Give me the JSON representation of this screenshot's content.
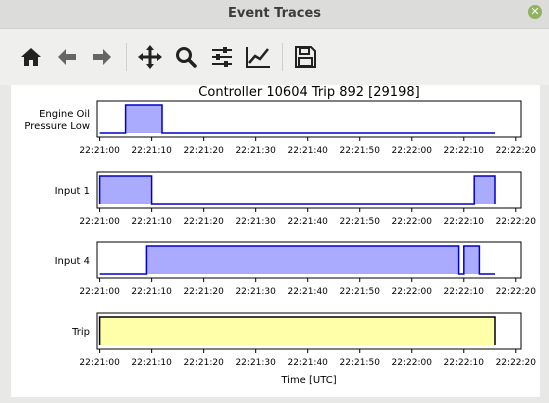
{
  "window": {
    "title": "Event Traces"
  },
  "toolbar": {
    "buttons": [
      {
        "name": "home-button",
        "icon": "home-icon"
      },
      {
        "name": "back-button",
        "icon": "arrow-left-icon"
      },
      {
        "name": "forward-button",
        "icon": "arrow-right-icon"
      },
      {
        "name": "pan-button",
        "icon": "move-icon"
      },
      {
        "name": "zoom-button",
        "icon": "magnifier-icon"
      },
      {
        "name": "configure-subplots-button",
        "icon": "sliders-icon"
      },
      {
        "name": "edit-axis-button",
        "icon": "line-chart-icon"
      },
      {
        "name": "save-button",
        "icon": "floppy-disk-icon"
      }
    ]
  },
  "chart_data": {
    "type": "area",
    "title": "Controller 10604 Trip 892 [29198]",
    "xlabel": "Time [UTC]",
    "xlim": [
      "22:20:59.5",
      "22:22:21"
    ],
    "xticks": [
      "22:21:00",
      "22:21:10",
      "22:21:20",
      "22:21:30",
      "22:21:40",
      "22:21:50",
      "22:22:00",
      "22:22:10",
      "22:22:20"
    ],
    "ylim": [
      0,
      1
    ],
    "panels": [
      {
        "name": "Engine Oil Pressure Low",
        "ylabel": [
          "Engine Oil",
          "Pressure Low"
        ],
        "color": "#aaaaff",
        "edge": "#0000cc",
        "x": [
          "22:21:00",
          "22:21:05",
          "22:21:05",
          "22:21:12",
          "22:21:12",
          "22:22:16"
        ],
        "y": [
          0,
          0,
          1,
          1,
          0,
          0
        ]
      },
      {
        "name": "Input 1",
        "ylabel": [
          "Input 1"
        ],
        "color": "#aaaaff",
        "edge": "#0000cc",
        "x": [
          "22:21:00",
          "22:21:00",
          "22:21:10",
          "22:21:10",
          "22:22:12",
          "22:22:12",
          "22:22:16",
          "22:22:16"
        ],
        "y": [
          0,
          1,
          1,
          0,
          0,
          1,
          1,
          0
        ]
      },
      {
        "name": "Input 4",
        "ylabel": [
          "Input 4"
        ],
        "color": "#aaaaff",
        "edge": "#0000cc",
        "x": [
          "22:21:00",
          "22:21:09",
          "22:21:09",
          "22:22:09",
          "22:22:09",
          "22:22:10",
          "22:22:10",
          "22:22:13",
          "22:22:13",
          "22:22:16"
        ],
        "y": [
          0,
          0,
          1,
          1,
          0,
          0,
          1,
          1,
          0,
          0
        ]
      },
      {
        "name": "Trip",
        "ylabel": [
          "Trip"
        ],
        "color": "#ffffaa",
        "edge": "#000000",
        "x": [
          "22:21:00",
          "22:21:00",
          "22:22:16",
          "22:22:16"
        ],
        "y": [
          0,
          1,
          1,
          0
        ]
      }
    ]
  }
}
